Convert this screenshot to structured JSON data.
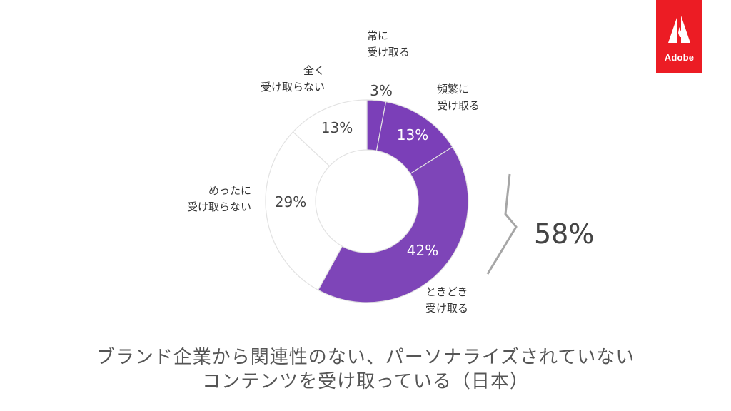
{
  "logo": {
    "text": "Adobe",
    "name": "adobe-logo-icon"
  },
  "chart_data": {
    "type": "pie",
    "donut": true,
    "slices": [
      {
        "label": [
          "常に",
          "受け取る"
        ],
        "value": 3,
        "display": "3%",
        "color": "#7b3fb8",
        "highlight": true
      },
      {
        "label": [
          "頻繁に",
          "受け取る"
        ],
        "value": 13,
        "display": "13%",
        "color": "#7b3fb8",
        "highlight": true
      },
      {
        "label": [
          "ときどき",
          "受け取る"
        ],
        "value": 42,
        "display": "42%",
        "color": "#7e45b8",
        "highlight": true
      },
      {
        "label": [
          "めったに",
          "受け取らない"
        ],
        "value": 29,
        "display": "29%",
        "color": "#ffffff",
        "highlight": false
      },
      {
        "label": [
          "全く",
          "受け取らない"
        ],
        "value": 13,
        "display": "13%",
        "color": "#ffffff",
        "highlight": false
      }
    ],
    "total_highlight": "58%",
    "title": [
      "ブランド企業から関連性のない、パーソナライズされていない",
      "コンテンツを受け取っている（日本）"
    ]
  }
}
